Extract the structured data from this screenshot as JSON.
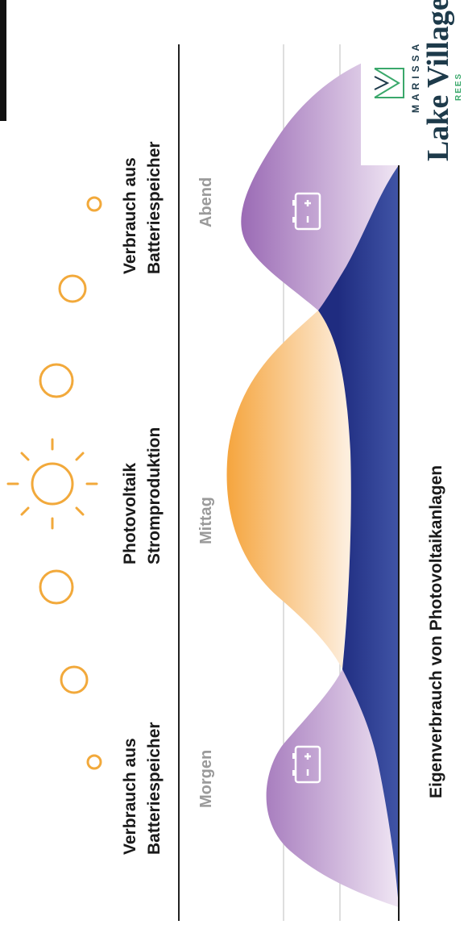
{
  "labels": {
    "battery_left_line1": "Verbrauch aus",
    "battery_left_line2": "Batteriespeicher",
    "pv_line1": "Photovoltaik",
    "pv_line2": "Stromproduktion",
    "battery_right_line1": "Verbrauch aus",
    "battery_right_line2": "Batteriespeicher",
    "bottom": "Eigenverbrauch von Photovoltaikanlagen"
  },
  "times": {
    "morning": "Morgen",
    "noon": "Mittag",
    "evening": "Abend"
  },
  "logo": {
    "top": "MARISSA",
    "main": "Lake Village",
    "sub": "REES"
  },
  "colors": {
    "sun": "#f2a93b",
    "pv_fill": "#f5a43c",
    "battery_fill": "#9b6bb5",
    "self_consumption": "#2e3f93",
    "logo_dark": "#1d3a4a",
    "logo_green": "#3aa86b"
  },
  "icons": {
    "sun": "sun-icon",
    "battery": "battery-icon"
  }
}
